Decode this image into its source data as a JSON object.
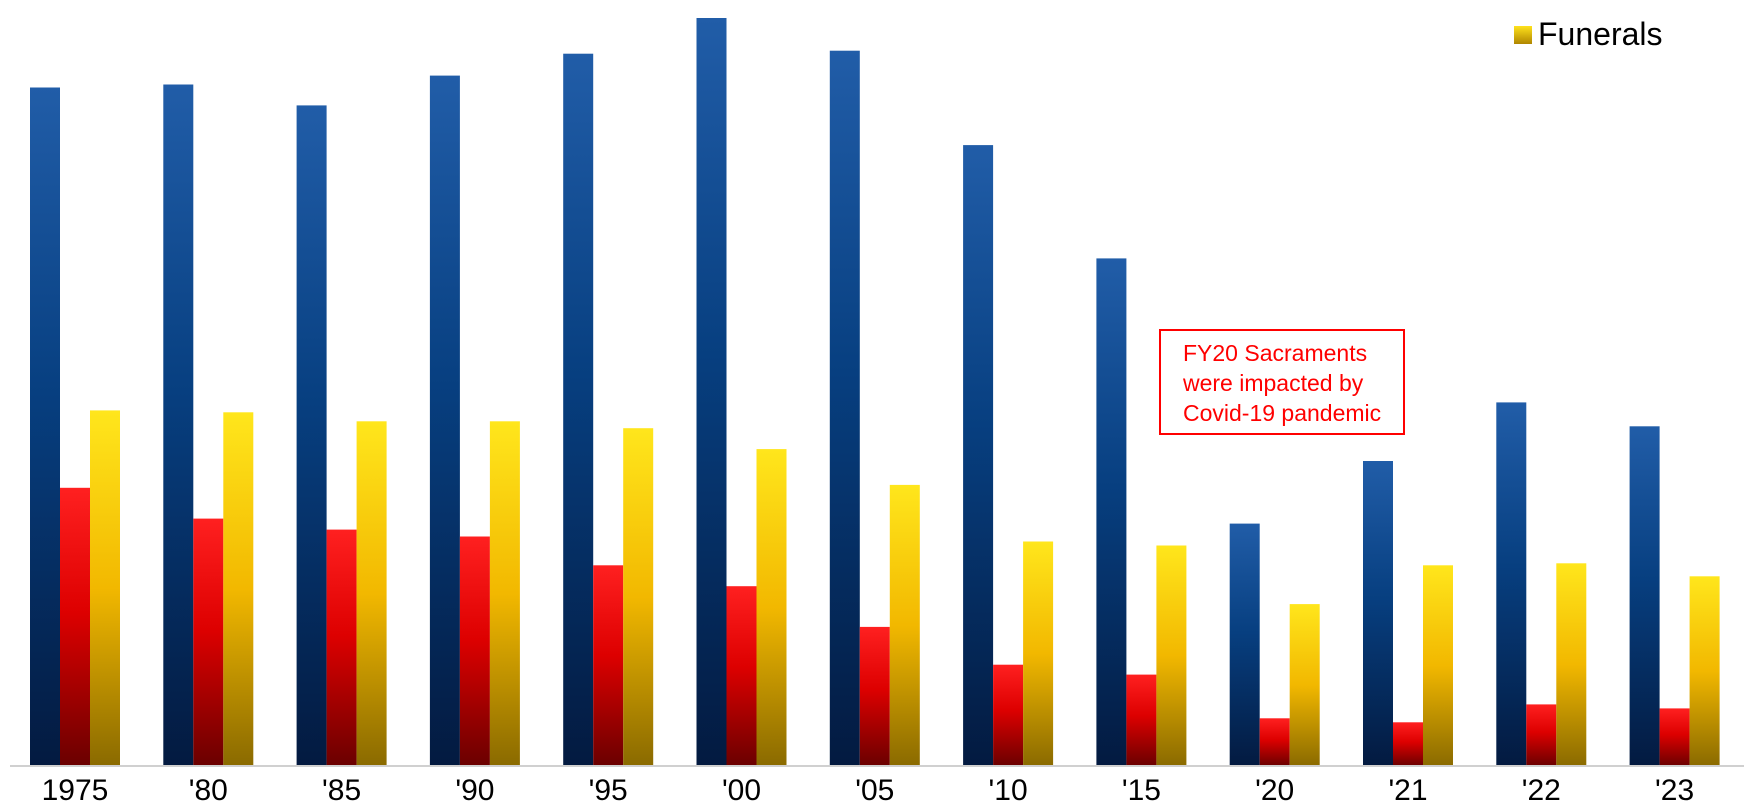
{
  "chart_data": {
    "type": "bar",
    "categories": [
      "1975",
      "'80",
      "'85",
      "'90",
      "'95",
      "'00",
      "'05",
      "'10",
      "'15",
      "'20",
      "'21",
      "'22",
      "'23"
    ],
    "series": [
      {
        "name": "",
        "color": "#0d3a7a",
        "values": [
          683,
          686,
          665,
          695,
          717,
          753,
          720,
          625,
          511,
          244,
          307,
          366,
          342
        ]
      },
      {
        "name": "",
        "color": "#e00000",
        "values": [
          280,
          249,
          238,
          231,
          202,
          181,
          140,
          102,
          92,
          48,
          44,
          62,
          58
        ]
      },
      {
        "name": "Funerals",
        "color": "#f2c200",
        "values": [
          358,
          356,
          347,
          347,
          340,
          319,
          283,
          226,
          222,
          163,
          202,
          204,
          191
        ]
      }
    ],
    "ylim": [
      0,
      760
    ],
    "grid": false,
    "legend": {
      "position": "top-right",
      "entries": [
        "Funerals"
      ]
    },
    "annotation": {
      "lines": [
        "FY20 Sacraments",
        "were impacted by",
        "Covid-19 pandemic"
      ],
      "color": "#ff0000"
    },
    "title": "",
    "xlabel": "",
    "ylabel": ""
  }
}
